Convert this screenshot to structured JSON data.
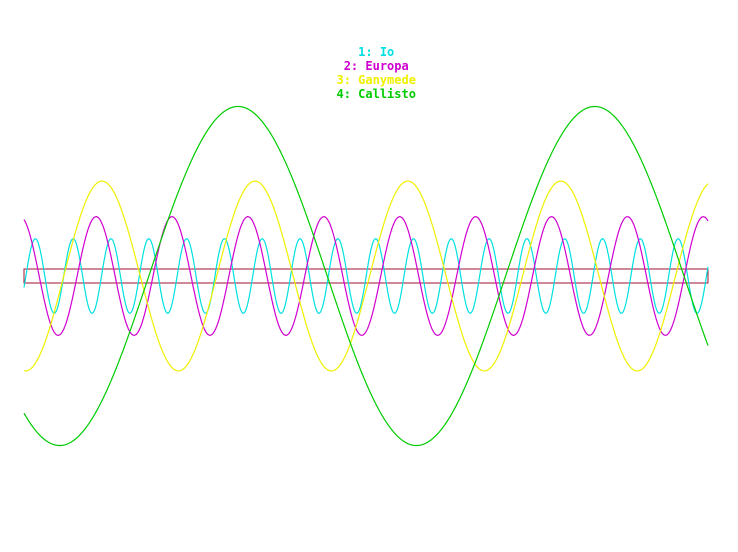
{
  "chart_data": {
    "type": "line",
    "title": "",
    "xlabel": "",
    "ylabel": "",
    "grid": false,
    "legend_position": "top-center",
    "series": [
      {
        "key": "io",
        "name": "1: Io",
        "color": "#00e0e0",
        "period": 1.769,
        "amplitude": 0.22,
        "phase": 0.7
      },
      {
        "key": "europa",
        "name": "2: Europa",
        "color": "#d000d0",
        "period": 3.551,
        "amplitude": 0.35,
        "phase": 0.05
      },
      {
        "key": "ganymede",
        "name": "3: Ganymede",
        "color": "#f0f000",
        "period": 7.155,
        "amplitude": 0.56,
        "phase": 0.49
      },
      {
        "key": "callisto",
        "name": "4: Callisto",
        "color": "#00cc00",
        "period": 16.69,
        "amplitude": 1.0,
        "phase": 0.4
      }
    ],
    "x_range": [
      0,
      32
    ],
    "y_range": [
      -1.05,
      1.05
    ],
    "planet_band": {
      "color": "#a01030"
    }
  }
}
